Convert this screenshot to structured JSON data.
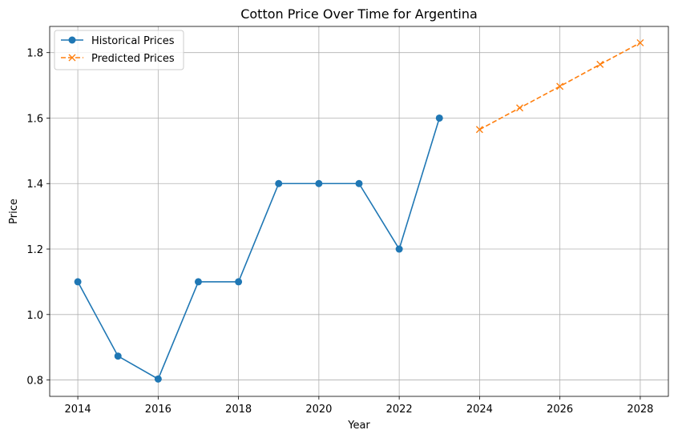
{
  "chart_data": {
    "type": "line",
    "title": "Cotton Price Over Time for Argentina",
    "xlabel": "Year",
    "ylabel": "Price",
    "xlim": [
      2013.3,
      2028.7
    ],
    "ylim": [
      0.75,
      1.88
    ],
    "xticks": [
      2014,
      2016,
      2018,
      2020,
      2022,
      2024,
      2026,
      2028
    ],
    "yticks": [
      0.8,
      1.0,
      1.2,
      1.4,
      1.6,
      1.8
    ],
    "grid": true,
    "legend_position": "upper-left",
    "series": [
      {
        "name": "Historical Prices",
        "color": "#1f77b4",
        "linestyle": "solid",
        "marker": "circle",
        "x": [
          2014,
          2015,
          2016,
          2017,
          2018,
          2019,
          2020,
          2021,
          2022,
          2023
        ],
        "y": [
          1.1,
          0.873,
          0.803,
          1.1,
          1.1,
          1.4,
          1.4,
          1.4,
          1.2,
          1.6
        ]
      },
      {
        "name": "Predicted Prices",
        "color": "#ff7f0e",
        "linestyle": "dashed",
        "marker": "x",
        "x": [
          2024,
          2025,
          2026,
          2027,
          2028
        ],
        "y": [
          1.565,
          1.631,
          1.697,
          1.764,
          1.83
        ]
      }
    ]
  }
}
